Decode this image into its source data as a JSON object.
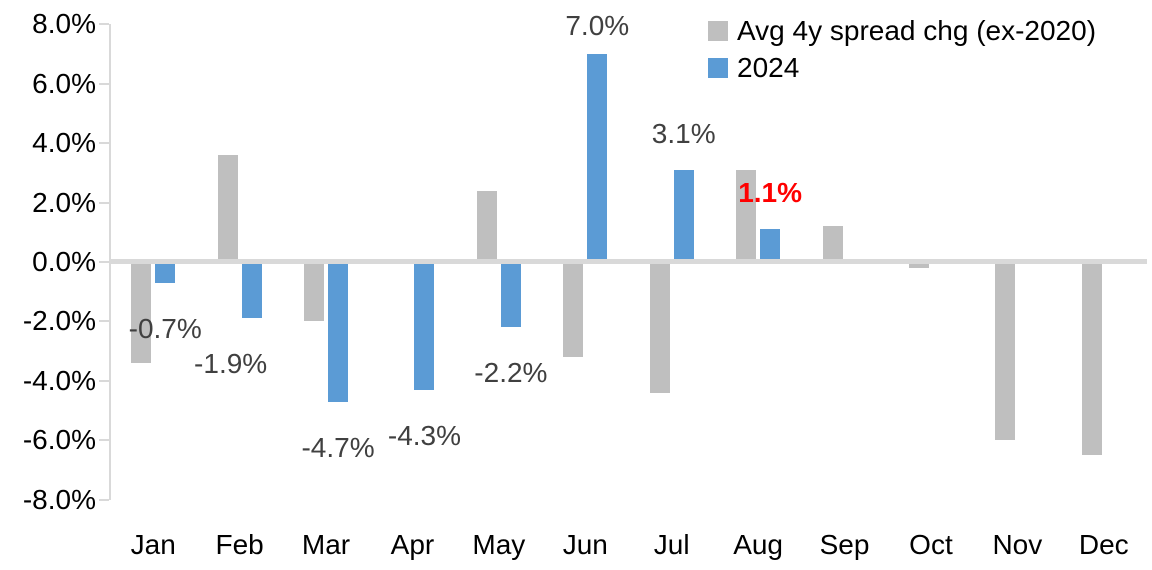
{
  "chart_data": {
    "type": "bar",
    "title": "",
    "categories": [
      "Jan",
      "Feb",
      "Mar",
      "Apr",
      "May",
      "Jun",
      "Jul",
      "Aug",
      "Sep",
      "Oct",
      "Nov",
      "Dec"
    ],
    "series": [
      {
        "name": "Avg 4y spread chg (ex-2020)",
        "color": "#bfbfbf",
        "values": [
          -3.4,
          3.6,
          -2.0,
          0.0,
          2.4,
          -3.2,
          -4.4,
          3.1,
          1.2,
          -0.2,
          -6.0,
          -6.5
        ]
      },
      {
        "name": "2024",
        "color": "#5b9bd5",
        "values": [
          -0.7,
          -1.9,
          -4.7,
          -4.3,
          -2.2,
          7.0,
          3.1,
          1.1,
          null,
          null,
          null,
          null
        ]
      }
    ],
    "data_labels": [
      {
        "month": "Jan",
        "text": "-0.7%",
        "color": "#404040",
        "bold": false
      },
      {
        "month": "Feb",
        "text": "-1.9%",
        "color": "#404040",
        "bold": false
      },
      {
        "month": "Mar",
        "text": "-4.7%",
        "color": "#404040",
        "bold": false
      },
      {
        "month": "Apr",
        "text": "-4.3%",
        "color": "#404040",
        "bold": false
      },
      {
        "month": "May",
        "text": "-2.2%",
        "color": "#404040",
        "bold": false
      },
      {
        "month": "Jun",
        "text": "7.0%",
        "color": "#404040",
        "bold": false
      },
      {
        "month": "Jul",
        "text": "3.1%",
        "color": "#404040",
        "bold": false
      },
      {
        "month": "Aug",
        "text": "1.1%",
        "color": "#ff0000",
        "bold": true
      }
    ],
    "y_axis": {
      "tick_labels": [
        "8.0%",
        "6.0%",
        "4.0%",
        "2.0%",
        "0.0%",
        "-2.0%",
        "-4.0%",
        "-6.0%",
        "-8.0%"
      ],
      "max": 8,
      "min": -8,
      "tick_step": 2,
      "grid": false
    },
    "legend": {
      "position": "top-right",
      "entries": [
        {
          "label": "Avg 4y spread chg (ex-2020)",
          "color": "#bfbfbf"
        },
        {
          "label": "2024",
          "color": "#5b9bd5"
        }
      ]
    },
    "colors": {
      "axis_line": "#d9d9d9",
      "axis_text": "#000000",
      "data_label": "#404040",
      "highlight_label": "#ff0000",
      "background": "#ffffff"
    }
  }
}
